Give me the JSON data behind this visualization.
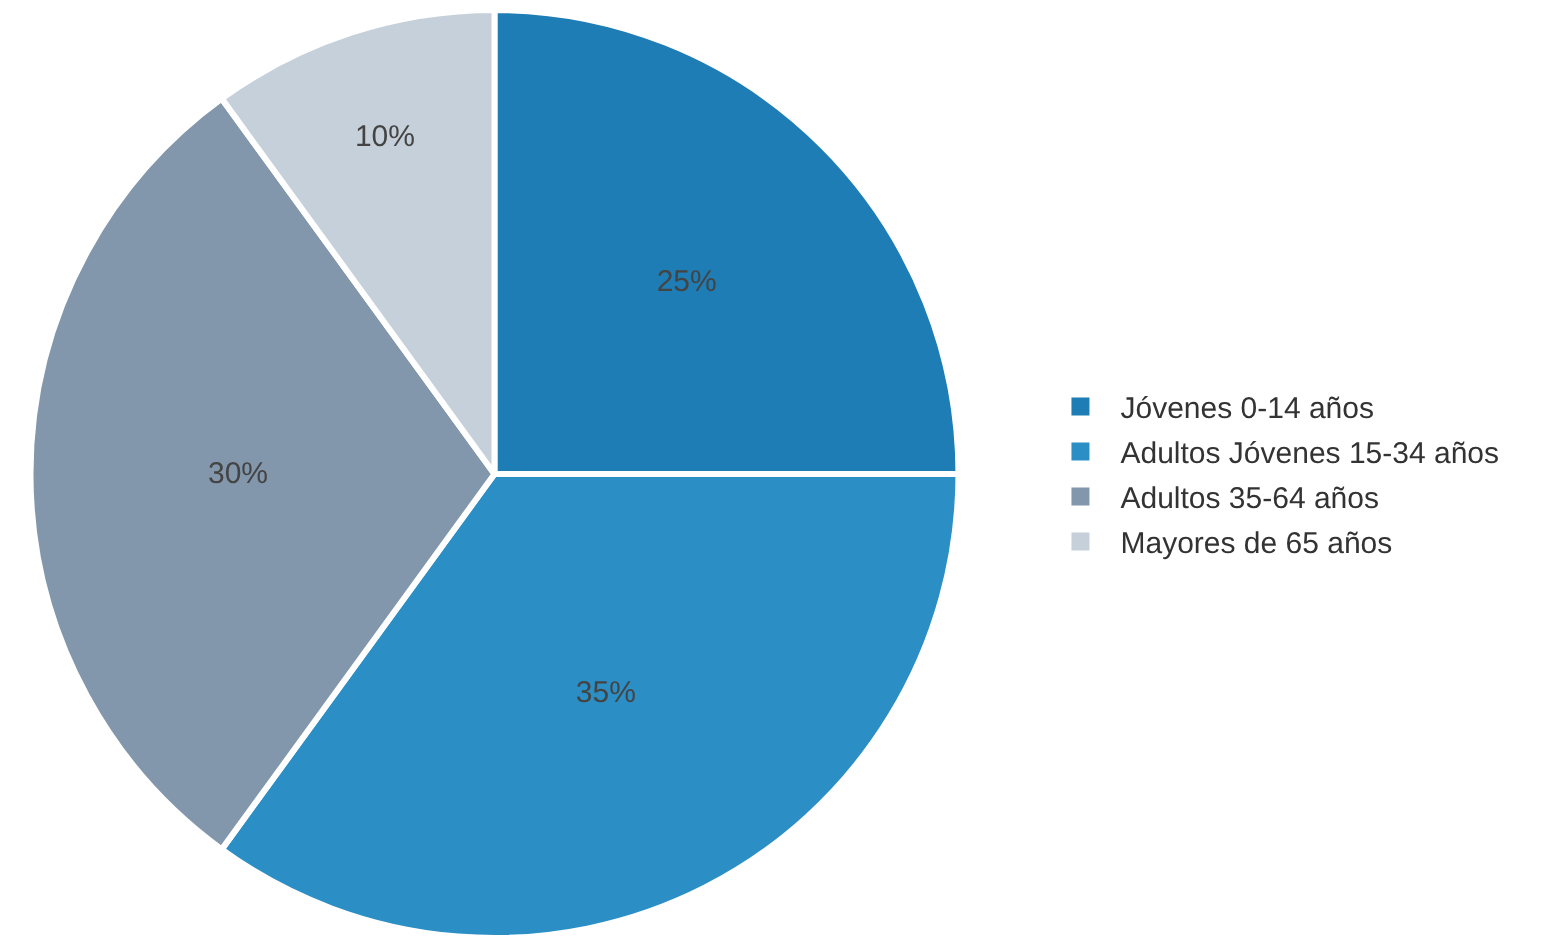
{
  "chart_data": {
    "type": "pie",
    "categories": [
      "Jóvenes 0-14 años",
      "Adultos Jóvenes 15-34 años",
      "Adultos 35-64 años",
      "Mayores de 65 años"
    ],
    "values": [
      25,
      35,
      30,
      10
    ],
    "colors": [
      "#1f7db5",
      "#2b8fc6",
      "#8297ab",
      "#c6d0da"
    ],
    "value_labels": [
      "25%",
      "35%",
      "30%",
      "10%"
    ],
    "legend": "right"
  }
}
